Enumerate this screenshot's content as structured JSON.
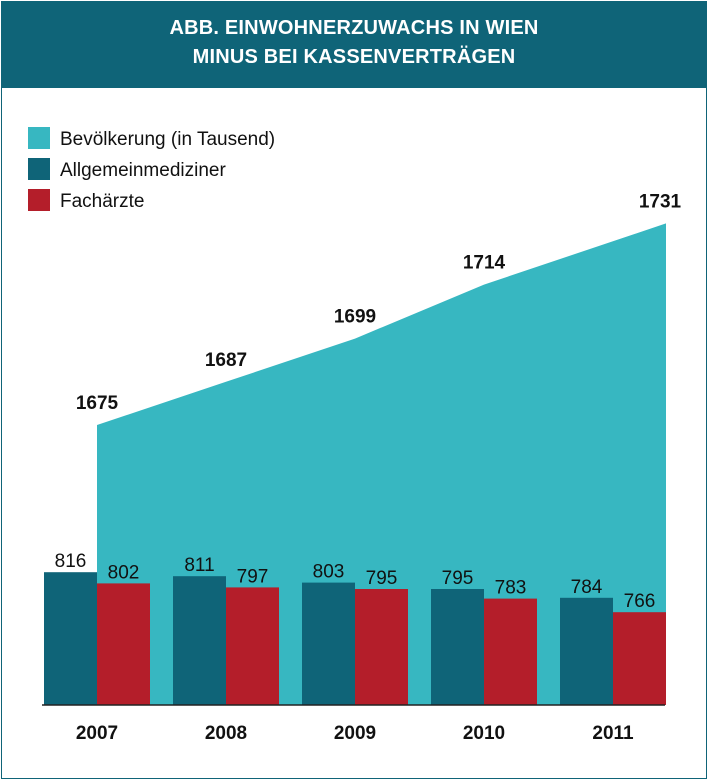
{
  "header": {
    "line1": "ABB. EINWOHNERZUWACHS IN WIEN",
    "line2": "MINUS BEI KASSENVERTRÄGEN"
  },
  "colors": {
    "header_bg": "#0f6478",
    "population": "#37b7c1",
    "general": "#0f6478",
    "specialist": "#b41e2a"
  },
  "chart_data": {
    "type": "bar",
    "title": "ABB. EINWOHNERZUWACHS IN WIEN MINUS BEI KASSENVERTRÄGEN",
    "categories": [
      "2007",
      "2008",
      "2009",
      "2010",
      "2011"
    ],
    "legend_position": "top-left",
    "grid": false,
    "series": [
      {
        "name": "Bevölkerung (in Tausend)",
        "type": "area",
        "values": [
          1675,
          1687,
          1699,
          1714,
          1731
        ]
      },
      {
        "name": "Allgemeinmediziner",
        "type": "bar",
        "values": [
          816,
          811,
          803,
          795,
          784
        ]
      },
      {
        "name": "Fachärzte",
        "type": "bar",
        "values": [
          802,
          797,
          795,
          783,
          766
        ]
      }
    ]
  }
}
